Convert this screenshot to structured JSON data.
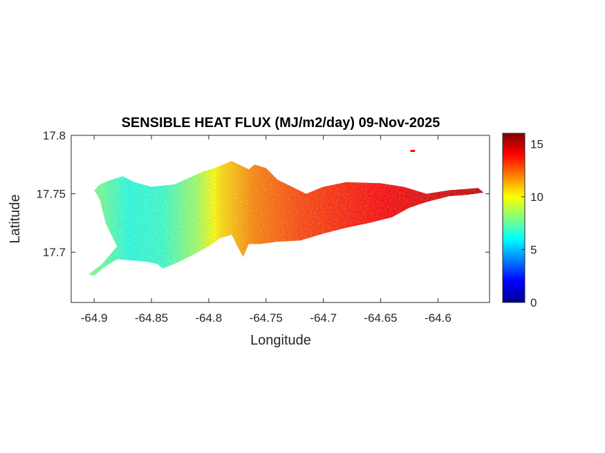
{
  "chart_data": {
    "type": "heatmap",
    "title": "SENSIBLE HEAT FLUX (MJ/m2/day) 09-Nov-2025",
    "xlabel": "Longitude",
    "ylabel": "Latitude",
    "xlim": [
      -64.92,
      -64.555
    ],
    "ylim": [
      17.657,
      17.8
    ],
    "xticks": [
      -64.9,
      -64.85,
      -64.8,
      -64.75,
      -64.7,
      -64.65,
      -64.6
    ],
    "xtick_labels": [
      "-64.9",
      "-64.85",
      "-64.8",
      "-64.75",
      "-64.7",
      "-64.65",
      "-64.6"
    ],
    "yticks": [
      17.7,
      17.75,
      17.8
    ],
    "ytick_labels": [
      "17.7",
      "17.75",
      "17.8"
    ],
    "colorbar": {
      "colormap": "jet",
      "range": [
        0,
        16
      ],
      "ticks": [
        0,
        5,
        10,
        15
      ],
      "tick_labels": [
        "0",
        "5",
        "10",
        "15"
      ]
    },
    "region_outline": [
      [
        -64.9,
        17.68
      ],
      [
        -64.89,
        17.688
      ],
      [
        -64.88,
        17.694
      ],
      [
        -64.855,
        17.692
      ],
      [
        -64.845,
        17.69
      ],
      [
        -64.84,
        17.686
      ],
      [
        -64.83,
        17.69
      ],
      [
        -64.815,
        17.697
      ],
      [
        -64.8,
        17.705
      ],
      [
        -64.79,
        17.712
      ],
      [
        -64.78,
        17.715
      ],
      [
        -64.775,
        17.705
      ],
      [
        -64.77,
        17.696
      ],
      [
        -64.765,
        17.707
      ],
      [
        -64.755,
        17.707
      ],
      [
        -64.74,
        17.709
      ],
      [
        -64.72,
        17.71
      ],
      [
        -64.7,
        17.716
      ],
      [
        -64.68,
        17.721
      ],
      [
        -64.66,
        17.725
      ],
      [
        -64.64,
        17.73
      ],
      [
        -64.625,
        17.738
      ],
      [
        -64.61,
        17.743
      ],
      [
        -64.59,
        17.748
      ],
      [
        -64.575,
        17.749
      ],
      [
        -64.56,
        17.751
      ],
      [
        -64.565,
        17.755
      ],
      [
        -64.59,
        17.753
      ],
      [
        -64.61,
        17.75
      ],
      [
        -64.63,
        17.756
      ],
      [
        -64.65,
        17.759
      ],
      [
        -64.68,
        17.76
      ],
      [
        -64.7,
        17.756
      ],
      [
        -64.715,
        17.75
      ],
      [
        -64.74,
        17.762
      ],
      [
        -64.75,
        17.772
      ],
      [
        -64.76,
        17.775
      ],
      [
        -64.765,
        17.771
      ],
      [
        -64.78,
        17.778
      ],
      [
        -64.795,
        17.772
      ],
      [
        -64.805,
        17.769
      ],
      [
        -64.83,
        17.758
      ],
      [
        -64.85,
        17.756
      ],
      [
        -64.865,
        17.76
      ],
      [
        -64.875,
        17.765
      ],
      [
        -64.885,
        17.762
      ],
      [
        -64.895,
        17.758
      ],
      [
        -64.9,
        17.753
      ],
      [
        -64.895,
        17.745
      ],
      [
        -64.89,
        17.725
      ],
      [
        -64.88,
        17.705
      ],
      [
        -64.893,
        17.69
      ],
      [
        -64.905,
        17.681
      ]
    ],
    "outlier_patch": {
      "lon": [
        -64.624,
        -64.62
      ],
      "lat": [
        17.786,
        17.787
      ],
      "value": 14
    },
    "value_field": {
      "description_of_gradient": "by longitude",
      "control_points": [
        {
          "lon": -64.9,
          "value": 8.0
        },
        {
          "lon": -64.87,
          "value": 6.5
        },
        {
          "lon": -64.84,
          "value": 6.8
        },
        {
          "lon": -64.81,
          "value": 8.5
        },
        {
          "lon": -64.79,
          "value": 10.5
        },
        {
          "lon": -64.76,
          "value": 12.0
        },
        {
          "lon": -64.72,
          "value": 13.0
        },
        {
          "lon": -64.65,
          "value": 14.0
        },
        {
          "lon": -64.56,
          "value": 15.0
        }
      ]
    }
  }
}
